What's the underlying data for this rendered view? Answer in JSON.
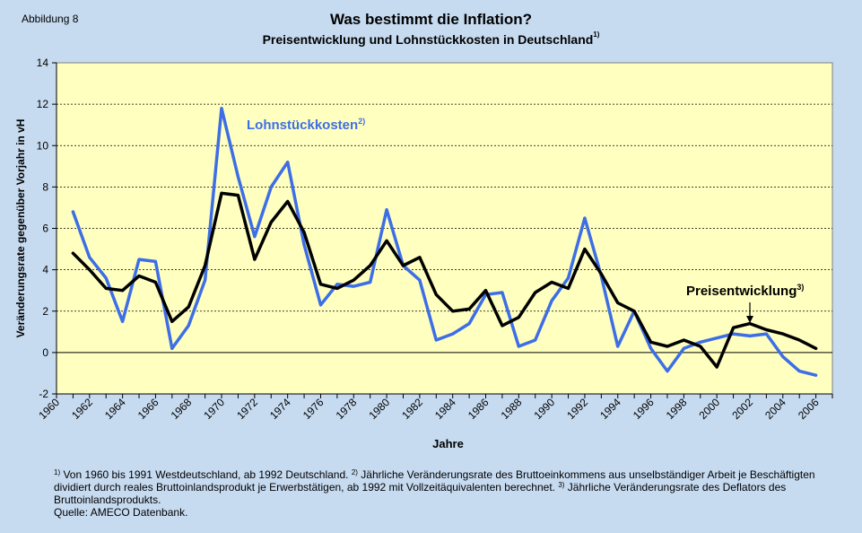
{
  "figure_label": "Abbildung  8",
  "footnote": {
    "s1": "1)",
    "t1": " Von 1960 bis 1991 Westdeutschland, ab 1992 Deutschland. ",
    "s2": "2)",
    "t2": " Jährliche Veränderungsrate  des Bruttoeinkommens aus unselbständiger  Arbeit je Beschäftigten dividiert  durch reales Bruttoinlandsprodukt  je Erwerbstätigen,  ab 1992 mit Vollzeitäquivalenten  berechnet. ",
    "s3": "3)",
    "t3": " Jährliche Veränderungsrate  des Deflators des Bruttoinlandsprodukts.",
    "source": "Quelle:  AMECO Datenbank."
  },
  "colors": {
    "background": "#c6daf0",
    "plot_area": "#ffffc0",
    "lohn": "#3d6ee6",
    "preis": "#000000"
  },
  "chart_data": {
    "type": "line",
    "title": "Was bestimmt die Inflation?",
    "subtitle": "Preisentwicklung und Lohnstückkosten in Deutschland",
    "subtitle_sup": "1)",
    "xlabel": "Jahre",
    "ylabel": "Veränderungsrate gegenüber Vorjahr in vH",
    "xlim": [
      1960,
      2007
    ],
    "ylim": [
      -2,
      14
    ],
    "yticks": [
      -2,
      0,
      2,
      4,
      6,
      8,
      10,
      12,
      14
    ],
    "xticks": [
      1960,
      1962,
      1964,
      1966,
      1968,
      1970,
      1972,
      1974,
      1976,
      1978,
      1980,
      1982,
      1984,
      1986,
      1988,
      1990,
      1992,
      1994,
      1996,
      1998,
      2000,
      2002,
      2004,
      2006
    ],
    "grid": "horizontal dashed",
    "series": [
      {
        "name": "Lohnstückkosten",
        "name_sup": "2)",
        "color": "#3d6ee6",
        "x": [
          1961,
          1962,
          1963,
          1964,
          1965,
          1966,
          1967,
          1968,
          1969,
          1970,
          1971,
          1972,
          1973,
          1974,
          1975,
          1976,
          1977,
          1978,
          1979,
          1980,
          1981,
          1982,
          1983,
          1984,
          1985,
          1986,
          1987,
          1988,
          1989,
          1990,
          1991,
          1992,
          1993,
          1994,
          1995,
          1996,
          1997,
          1998,
          1999,
          2000,
          2001,
          2002,
          2003,
          2004,
          2005,
          2006
        ],
        "values": [
          6.8,
          4.6,
          3.6,
          1.5,
          4.5,
          4.4,
          0.2,
          1.3,
          3.5,
          11.8,
          8.5,
          5.6,
          8.0,
          9.2,
          5.2,
          2.3,
          3.3,
          3.2,
          3.4,
          6.9,
          4.2,
          3.5,
          0.6,
          0.9,
          1.4,
          2.8,
          2.9,
          0.3,
          0.6,
          2.5,
          3.6,
          6.5,
          3.7,
          0.3,
          2.0,
          0.2,
          -0.9,
          0.2,
          0.5,
          0.7,
          0.9,
          0.8,
          0.9,
          -0.2,
          -0.9,
          -1.1
        ]
      },
      {
        "name": "Preisentwicklung",
        "name_sup": "3)",
        "color": "#000000",
        "x": [
          1961,
          1962,
          1963,
          1964,
          1965,
          1966,
          1967,
          1968,
          1969,
          1970,
          1971,
          1972,
          1973,
          1974,
          1975,
          1976,
          1977,
          1978,
          1979,
          1980,
          1981,
          1982,
          1983,
          1984,
          1985,
          1986,
          1987,
          1988,
          1989,
          1990,
          1991,
          1992,
          1993,
          1994,
          1995,
          1996,
          1997,
          1998,
          1999,
          2000,
          2001,
          2002,
          2003,
          2004,
          2005,
          2006
        ],
        "values": [
          4.8,
          4.0,
          3.1,
          3.0,
          3.7,
          3.4,
          1.5,
          2.2,
          4.2,
          7.7,
          7.6,
          4.5,
          6.3,
          7.3,
          5.8,
          3.3,
          3.1,
          3.5,
          4.2,
          5.4,
          4.2,
          4.6,
          2.8,
          2.0,
          2.1,
          3.0,
          1.3,
          1.7,
          2.9,
          3.4,
          3.1,
          5.0,
          3.8,
          2.4,
          2.0,
          0.5,
          0.3,
          0.6,
          0.3,
          -0.7,
          1.2,
          1.4,
          1.1,
          0.9,
          0.6,
          0.2
        ]
      }
    ]
  }
}
